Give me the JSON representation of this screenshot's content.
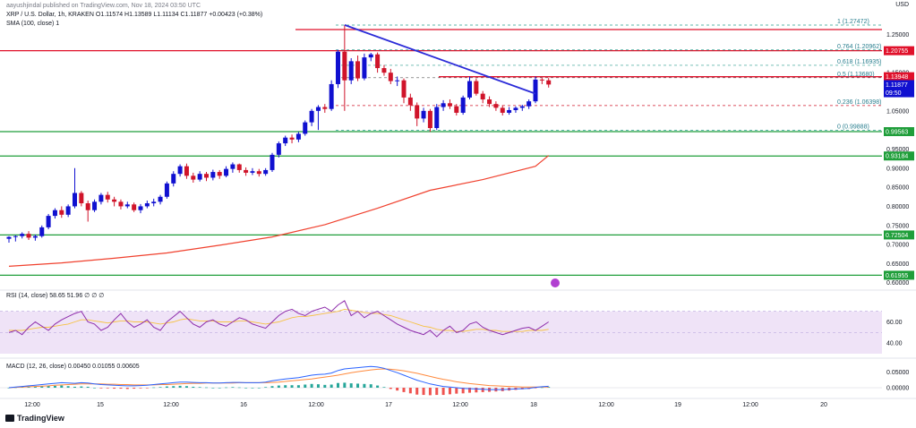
{
  "header": {
    "published": "aayushjindal published on TradingView.com, Nov 18, 2024 03:50 UTC",
    "symbol": "XRP / U.S. Dollar, 1h, KRAKEN",
    "ohlc": "O1.11574 H1.13589 L1.11134 C1.11877 +0.00423 (+0.38%)",
    "sma": "SMA (100, close) 1",
    "currency": "USD"
  },
  "colors": {
    "up": "#1010d0",
    "down": "#d0142a",
    "sma": "#f0412e",
    "trend": "#2b2bd8",
    "support": "#1f9e3a",
    "resistance": "#e0102a",
    "rsi": "#8e2dab",
    "rsi_band": "#efe3f7",
    "macd": "#2962ff",
    "signal": "#ff8a3d"
  },
  "chart_data": [
    {
      "type": "candlestick",
      "title": "XRP / U.S. Dollar, 1h, KRAKEN",
      "ylim": [
        0.59,
        1.27
      ],
      "y_ticks": [
        "1.25000",
        "1.15000",
        "1.05000",
        "0.95000",
        "0.90000",
        "0.85000",
        "0.80000",
        "0.75000",
        "0.70000",
        "0.65000",
        "0.60000"
      ],
      "x_ticks": [
        "12:00",
        "15",
        "12:00",
        "16",
        "12:00",
        "17",
        "12:00",
        "18",
        "12:00",
        "19",
        "12:00",
        "20"
      ],
      "candles": [
        [
          0.715,
          0.72,
          0.705,
          0.722
        ],
        [
          0.72,
          0.722,
          0.708,
          0.724
        ],
        [
          0.722,
          0.728,
          0.716,
          0.732
        ],
        [
          0.728,
          0.718,
          0.712,
          0.735
        ],
        [
          0.718,
          0.722,
          0.71,
          0.726
        ],
        [
          0.722,
          0.745,
          0.718,
          0.75
        ],
        [
          0.745,
          0.775,
          0.74,
          0.78
        ],
        [
          0.775,
          0.79,
          0.768,
          0.795
        ],
        [
          0.79,
          0.778,
          0.77,
          0.8
        ],
        [
          0.778,
          0.8,
          0.772,
          0.805
        ],
        [
          0.8,
          0.835,
          0.795,
          0.9
        ],
        [
          0.835,
          0.808,
          0.8,
          0.84
        ],
        [
          0.808,
          0.79,
          0.76,
          0.815
        ],
        [
          0.79,
          0.812,
          0.785,
          0.818
        ],
        [
          0.812,
          0.83,
          0.805,
          0.835
        ],
        [
          0.83,
          0.818,
          0.81,
          0.838
        ],
        [
          0.818,
          0.812,
          0.8,
          0.825
        ],
        [
          0.812,
          0.8,
          0.792,
          0.818
        ],
        [
          0.8,
          0.805,
          0.795,
          0.812
        ],
        [
          0.805,
          0.79,
          0.785,
          0.81
        ],
        [
          0.79,
          0.8,
          0.782,
          0.806
        ],
        [
          0.8,
          0.808,
          0.795,
          0.815
        ],
        [
          0.808,
          0.812,
          0.8,
          0.82
        ],
        [
          0.812,
          0.825,
          0.805,
          0.83
        ],
        [
          0.825,
          0.86,
          0.82,
          0.865
        ],
        [
          0.86,
          0.885,
          0.852,
          0.892
        ],
        [
          0.885,
          0.905,
          0.878,
          0.91
        ],
        [
          0.905,
          0.88,
          0.872,
          0.912
        ],
        [
          0.88,
          0.87,
          0.862,
          0.888
        ],
        [
          0.87,
          0.885,
          0.865,
          0.892
        ],
        [
          0.885,
          0.875,
          0.866,
          0.89
        ],
        [
          0.875,
          0.89,
          0.868,
          0.896
        ],
        [
          0.89,
          0.88,
          0.872,
          0.895
        ],
        [
          0.88,
          0.898,
          0.876,
          0.905
        ],
        [
          0.898,
          0.91,
          0.888,
          0.915
        ],
        [
          0.91,
          0.895,
          0.888,
          0.912
        ],
        [
          0.895,
          0.888,
          0.88,
          0.902
        ],
        [
          0.888,
          0.892,
          0.882,
          0.9
        ],
        [
          0.892,
          0.885,
          0.878,
          0.898
        ],
        [
          0.885,
          0.895,
          0.88,
          0.9
        ],
        [
          0.895,
          0.935,
          0.89,
          0.94
        ],
        [
          0.935,
          0.965,
          0.928,
          0.97
        ],
        [
          0.965,
          0.98,
          0.958,
          0.985
        ],
        [
          0.98,
          0.975,
          0.965,
          0.988
        ],
        [
          0.975,
          0.99,
          0.968,
          0.995
        ],
        [
          0.99,
          1.02,
          0.985,
          1.025
        ],
        [
          1.02,
          1.05,
          1.01,
          1.055
        ],
        [
          1.05,
          1.06,
          1.0,
          1.065
        ],
        [
          1.06,
          1.055,
          1.045,
          1.068
        ],
        [
          1.055,
          1.12,
          1.05,
          1.13
        ],
        [
          1.12,
          1.205,
          1.11,
          1.21
        ],
        [
          1.205,
          1.13,
          1.05,
          1.275
        ],
        [
          1.13,
          1.18,
          1.12,
          1.188
        ],
        [
          1.18,
          1.135,
          1.128,
          1.195
        ],
        [
          1.135,
          1.19,
          1.13,
          1.2
        ],
        [
          1.19,
          1.198,
          1.18,
          1.202
        ],
        [
          1.198,
          1.162,
          1.15,
          1.203
        ],
        [
          1.162,
          1.15,
          1.142,
          1.17
        ],
        [
          1.15,
          1.128,
          1.12,
          1.16
        ],
        [
          1.128,
          1.13,
          1.115,
          1.14
        ],
        [
          1.13,
          1.085,
          1.07,
          1.135
        ],
        [
          1.085,
          1.065,
          1.05,
          1.095
        ],
        [
          1.065,
          1.03,
          1.01,
          1.072
        ],
        [
          1.03,
          1.05,
          1.02,
          1.058
        ],
        [
          1.05,
          1.005,
          0.995,
          1.055
        ],
        [
          1.005,
          1.06,
          1.0,
          1.068
        ],
        [
          1.06,
          1.07,
          1.05,
          1.078
        ],
        [
          1.07,
          1.062,
          1.055,
          1.08
        ],
        [
          1.062,
          1.045,
          1.038,
          1.068
        ],
        [
          1.045,
          1.085,
          1.04,
          1.09
        ],
        [
          1.085,
          1.128,
          1.08,
          1.14
        ],
        [
          1.128,
          1.095,
          1.09,
          1.135
        ],
        [
          1.095,
          1.08,
          1.07,
          1.102
        ],
        [
          1.08,
          1.068,
          1.06,
          1.088
        ],
        [
          1.068,
          1.058,
          1.05,
          1.075
        ],
        [
          1.058,
          1.045,
          1.038,
          1.065
        ],
        [
          1.045,
          1.052,
          1.04,
          1.06
        ],
        [
          1.052,
          1.058,
          1.045,
          1.062
        ],
        [
          1.058,
          1.062,
          1.05,
          1.066
        ],
        [
          1.062,
          1.075,
          1.055,
          1.08
        ],
        [
          1.075,
          1.132,
          1.07,
          1.14
        ],
        [
          1.132,
          1.13,
          1.12,
          1.136
        ],
        [
          1.13,
          1.119,
          1.111,
          1.136
        ]
      ],
      "sma": [
        [
          0,
          0.643
        ],
        [
          8,
          0.652
        ],
        [
          16,
          0.664
        ],
        [
          24,
          0.678
        ],
        [
          32,
          0.698
        ],
        [
          40,
          0.72
        ],
        [
          48,
          0.752
        ],
        [
          56,
          0.795
        ],
        [
          64,
          0.842
        ],
        [
          72,
          0.87
        ],
        [
          80,
          0.905
        ],
        [
          82,
          0.933
        ]
      ],
      "price_tags": [
        {
          "label": "1.20755",
          "value": 1.20755,
          "color": "#e0102a"
        },
        {
          "label": "1.13948",
          "value": 1.13948,
          "color": "#e0102a"
        },
        {
          "label": "1.11877",
          "value": 1.11877,
          "color": "#1010d0"
        },
        {
          "label": "09:50",
          "value": 1.0975,
          "color": "#1010d0"
        },
        {
          "label": "0.99563",
          "value": 0.99563,
          "color": "#1f9e3a"
        },
        {
          "label": "0.93184",
          "value": 0.93184,
          "color": "#1f9e3a"
        },
        {
          "label": "0.72504",
          "value": 0.72504,
          "color": "#1f9e3a"
        },
        {
          "label": "0.61955",
          "value": 0.61955,
          "color": "#1f9e3a"
        }
      ],
      "fibonacci": [
        {
          "label": "1 (1.27472)",
          "value": 1.27472
        },
        {
          "label": "0.764 (1.20962)",
          "value": 1.20962
        },
        {
          "label": "0.618 (1.16935)",
          "value": 1.16935
        },
        {
          "label": "0.5 (1.13680)",
          "value": 1.1368
        },
        {
          "label": "0.236 (1.06398)",
          "value": 1.06398
        },
        {
          "label": "0 (0.99888)",
          "value": 0.99888
        }
      ],
      "horizontal_lines": [
        {
          "name": "resistance-top",
          "value": 1.263,
          "kind": "resistance"
        },
        {
          "name": "resistance-mid",
          "value": 1.20755,
          "kind": "resistance"
        },
        {
          "name": "resistance-low",
          "value": 1.13948,
          "kind": "resistance"
        },
        {
          "name": "support-1",
          "value": 0.99563,
          "kind": "support"
        },
        {
          "name": "support-2",
          "value": 0.93184,
          "kind": "support"
        },
        {
          "name": "support-3",
          "value": 0.72504,
          "kind": "support"
        },
        {
          "name": "support-4",
          "value": 0.61955,
          "kind": "support"
        }
      ],
      "trendline": {
        "from": [
          51,
          1.275
        ],
        "to": [
          80,
          1.095
        ]
      }
    },
    {
      "type": "line",
      "title": "RSI (14, close)",
      "legend_text": "RSI (14, close) 58.65 51.96 ∅ ∅ ∅",
      "ylim": [
        30,
        85
      ],
      "y_ticks": [
        "60.00",
        "40.00"
      ],
      "band": [
        30,
        70
      ],
      "mid_levels": [
        50,
        70
      ],
      "values": [
        50,
        52,
        48,
        55,
        60,
        56,
        52,
        58,
        62,
        65,
        68,
        70,
        60,
        58,
        52,
        55,
        62,
        68,
        60,
        55,
        58,
        62,
        55,
        52,
        60,
        65,
        70,
        64,
        58,
        55,
        60,
        62,
        58,
        56,
        60,
        64,
        62,
        58,
        56,
        54,
        60,
        66,
        70,
        72,
        68,
        66,
        70,
        72,
        74,
        70,
        76,
        80,
        66,
        70,
        64,
        68,
        70,
        66,
        62,
        58,
        55,
        52,
        50,
        48,
        52,
        46,
        52,
        56,
        50,
        52,
        58,
        60,
        55,
        52,
        50,
        48,
        50,
        52,
        54,
        55,
        52,
        56,
        60
      ],
      "signal": [
        52,
        52,
        52,
        53,
        54,
        55,
        55,
        56,
        57,
        58,
        60,
        62,
        62,
        61,
        60,
        59,
        60,
        61,
        61,
        60,
        60,
        60,
        59,
        58,
        59,
        60,
        62,
        63,
        62,
        61,
        61,
        61,
        60,
        60,
        60,
        61,
        61,
        60,
        59,
        58,
        59,
        60,
        62,
        64,
        65,
        65,
        66,
        67,
        68,
        69,
        70,
        72,
        71,
        70,
        69,
        68,
        68,
        67,
        66,
        64,
        62,
        60,
        58,
        56,
        55,
        53,
        52,
        52,
        51,
        51,
        52,
        53,
        53,
        52,
        52,
        51,
        51,
        51,
        51,
        52,
        52,
        52,
        53
      ]
    },
    {
      "type": "line",
      "title": "MACD (12, 26, close)",
      "legend_text": "MACD (12, 26, close) 0.00450 0.01055 0.00605",
      "ylim": [
        -0.02,
        0.08
      ],
      "y_ticks": [
        "0.05000",
        "0.00000"
      ],
      "macd": [
        0.0,
        0.002,
        0.004,
        0.006,
        0.008,
        0.01,
        0.012,
        0.014,
        0.016,
        0.015,
        0.014,
        0.016,
        0.015,
        0.012,
        0.01,
        0.009,
        0.008,
        0.007,
        0.006,
        0.006,
        0.007,
        0.008,
        0.01,
        0.012,
        0.014,
        0.016,
        0.018,
        0.018,
        0.017,
        0.016,
        0.016,
        0.015,
        0.015,
        0.016,
        0.017,
        0.017,
        0.016,
        0.016,
        0.016,
        0.018,
        0.022,
        0.025,
        0.028,
        0.03,
        0.032,
        0.036,
        0.04,
        0.042,
        0.043,
        0.047,
        0.055,
        0.06,
        0.062,
        0.064,
        0.066,
        0.068,
        0.066,
        0.062,
        0.055,
        0.048,
        0.04,
        0.032,
        0.024,
        0.018,
        0.012,
        0.008,
        0.004,
        0.002,
        0.0,
        -0.002,
        -0.003,
        -0.004,
        -0.005,
        -0.006,
        -0.006,
        -0.006,
        -0.005,
        -0.004,
        -0.003,
        -0.002,
        0.001,
        0.003,
        0.0045
      ],
      "signal": [
        0.0,
        0.001,
        0.002,
        0.003,
        0.004,
        0.005,
        0.006,
        0.008,
        0.009,
        0.01,
        0.011,
        0.012,
        0.012,
        0.012,
        0.012,
        0.011,
        0.011,
        0.01,
        0.01,
        0.009,
        0.009,
        0.009,
        0.009,
        0.01,
        0.01,
        0.011,
        0.012,
        0.013,
        0.014,
        0.014,
        0.015,
        0.015,
        0.015,
        0.015,
        0.015,
        0.016,
        0.016,
        0.016,
        0.016,
        0.016,
        0.017,
        0.018,
        0.02,
        0.022,
        0.024,
        0.026,
        0.028,
        0.031,
        0.034,
        0.037,
        0.04,
        0.044,
        0.048,
        0.051,
        0.054,
        0.057,
        0.059,
        0.06,
        0.059,
        0.057,
        0.054,
        0.05,
        0.046,
        0.041,
        0.036,
        0.031,
        0.027,
        0.023,
        0.019,
        0.016,
        0.013,
        0.011,
        0.009,
        0.007,
        0.006,
        0.005,
        0.004,
        0.003,
        0.002,
        0.002,
        0.002,
        0.002,
        0.002
      ]
    }
  ]
}
